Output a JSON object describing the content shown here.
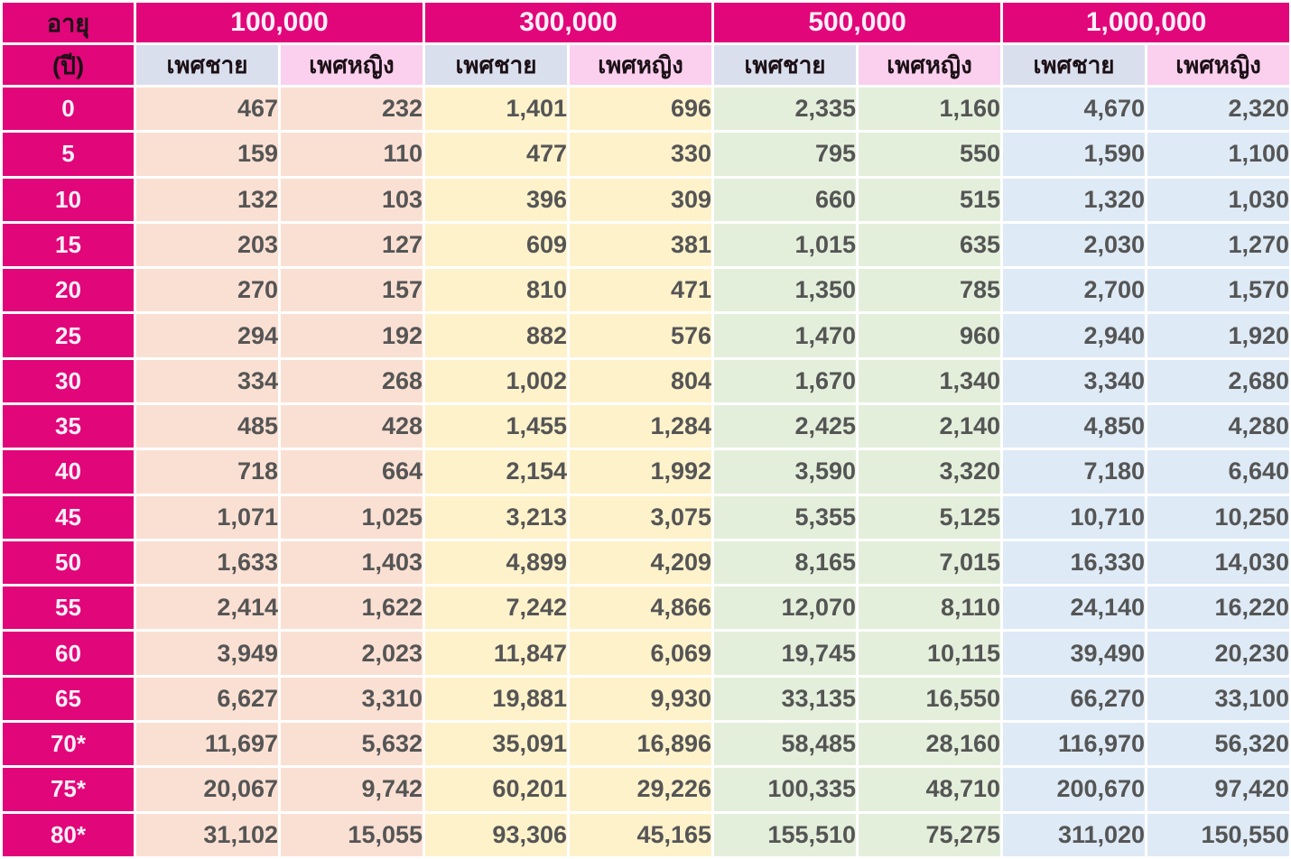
{
  "ui": {
    "colors": {
      "header_magenta": "#e1067a",
      "male_header_bg": "#d9dfed",
      "female_header_bg": "#fad0ee",
      "group0_bg": "#fae0d3",
      "group1_bg": "#fef2cb",
      "group2_bg": "#e3efdb",
      "group3_bg": "#deeaf5",
      "number_text": "#555555",
      "light_text": "#ffeff8",
      "dark_text": "#1c1016",
      "grid_line": "#ffffff"
    }
  },
  "chart_data": {
    "type": "table",
    "age_column_header": [
      "อายุ",
      "(ปี)"
    ],
    "coverage_amounts": [
      "100,000",
      "300,000",
      "500,000",
      "1,000,000"
    ],
    "gender_columns": [
      "เพศชาย",
      "เพศหญิง"
    ],
    "rows": [
      {
        "age": "0",
        "values": [
          467,
          232,
          1401,
          696,
          2335,
          1160,
          4670,
          2320
        ]
      },
      {
        "age": "5",
        "values": [
          159,
          110,
          477,
          330,
          795,
          550,
          1590,
          1100
        ]
      },
      {
        "age": "10",
        "values": [
          132,
          103,
          396,
          309,
          660,
          515,
          1320,
          1030
        ]
      },
      {
        "age": "15",
        "values": [
          203,
          127,
          609,
          381,
          1015,
          635,
          2030,
          1270
        ]
      },
      {
        "age": "20",
        "values": [
          270,
          157,
          810,
          471,
          1350,
          785,
          2700,
          1570
        ]
      },
      {
        "age": "25",
        "values": [
          294,
          192,
          882,
          576,
          1470,
          960,
          2940,
          1920
        ]
      },
      {
        "age": "30",
        "values": [
          334,
          268,
          1002,
          804,
          1670,
          1340,
          3340,
          2680
        ]
      },
      {
        "age": "35",
        "values": [
          485,
          428,
          1455,
          1284,
          2425,
          2140,
          4850,
          4280
        ]
      },
      {
        "age": "40",
        "values": [
          718,
          664,
          2154,
          1992,
          3590,
          3320,
          7180,
          6640
        ]
      },
      {
        "age": "45",
        "values": [
          1071,
          1025,
          3213,
          3075,
          5355,
          5125,
          10710,
          10250
        ]
      },
      {
        "age": "50",
        "values": [
          1633,
          1403,
          4899,
          4209,
          8165,
          7015,
          16330,
          14030
        ]
      },
      {
        "age": "55",
        "values": [
          2414,
          1622,
          7242,
          4866,
          12070,
          8110,
          24140,
          16220
        ]
      },
      {
        "age": "60",
        "values": [
          3949,
          2023,
          11847,
          6069,
          19745,
          10115,
          39490,
          20230
        ]
      },
      {
        "age": "65",
        "values": [
          6627,
          3310,
          19881,
          9930,
          33135,
          16550,
          66270,
          33100
        ]
      },
      {
        "age": "70*",
        "values": [
          11697,
          5632,
          35091,
          16896,
          58485,
          28160,
          116970,
          56320
        ]
      },
      {
        "age": "75*",
        "values": [
          20067,
          9742,
          60201,
          29226,
          100335,
          48710,
          200670,
          97420
        ]
      },
      {
        "age": "80*",
        "values": [
          31102,
          15055,
          93306,
          45165,
          155510,
          75275,
          311020,
          150550
        ]
      }
    ]
  }
}
